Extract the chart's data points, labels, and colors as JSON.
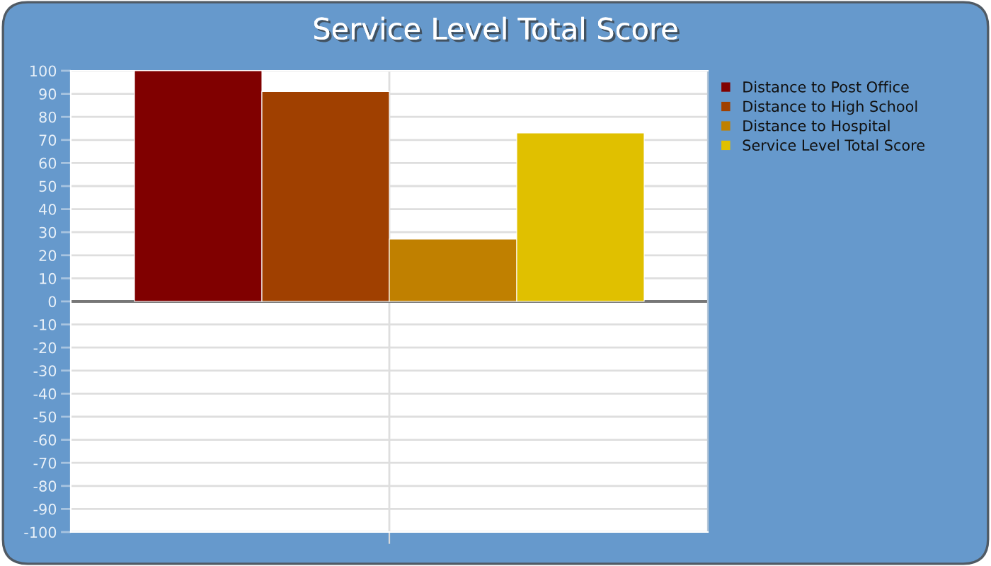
{
  "chart_data": {
    "type": "bar",
    "title": "Service Level Total Score",
    "categories": [
      null
    ],
    "series": [
      {
        "name": "Distance to Post Office",
        "color": "#800000",
        "values": [
          100
        ]
      },
      {
        "name": "Distance to High School",
        "color": "#a04000",
        "values": [
          91
        ]
      },
      {
        "name": "Distance to Hospital",
        "color": "#c08000",
        "values": [
          27
        ]
      },
      {
        "name": "Service Level Total Score",
        "color": "#e0c000",
        "values": [
          73
        ]
      }
    ],
    "ylim": [
      -100,
      100
    ],
    "yticks": [
      -100,
      -90,
      -80,
      -70,
      -60,
      -50,
      -40,
      -30,
      -20,
      -10,
      0,
      10,
      20,
      30,
      40,
      50,
      60,
      70,
      80,
      90,
      100
    ],
    "grid": true,
    "legend": "right",
    "ref_lines": [
      {
        "axis": "y",
        "value": 0,
        "color": "#777777"
      }
    ]
  }
}
